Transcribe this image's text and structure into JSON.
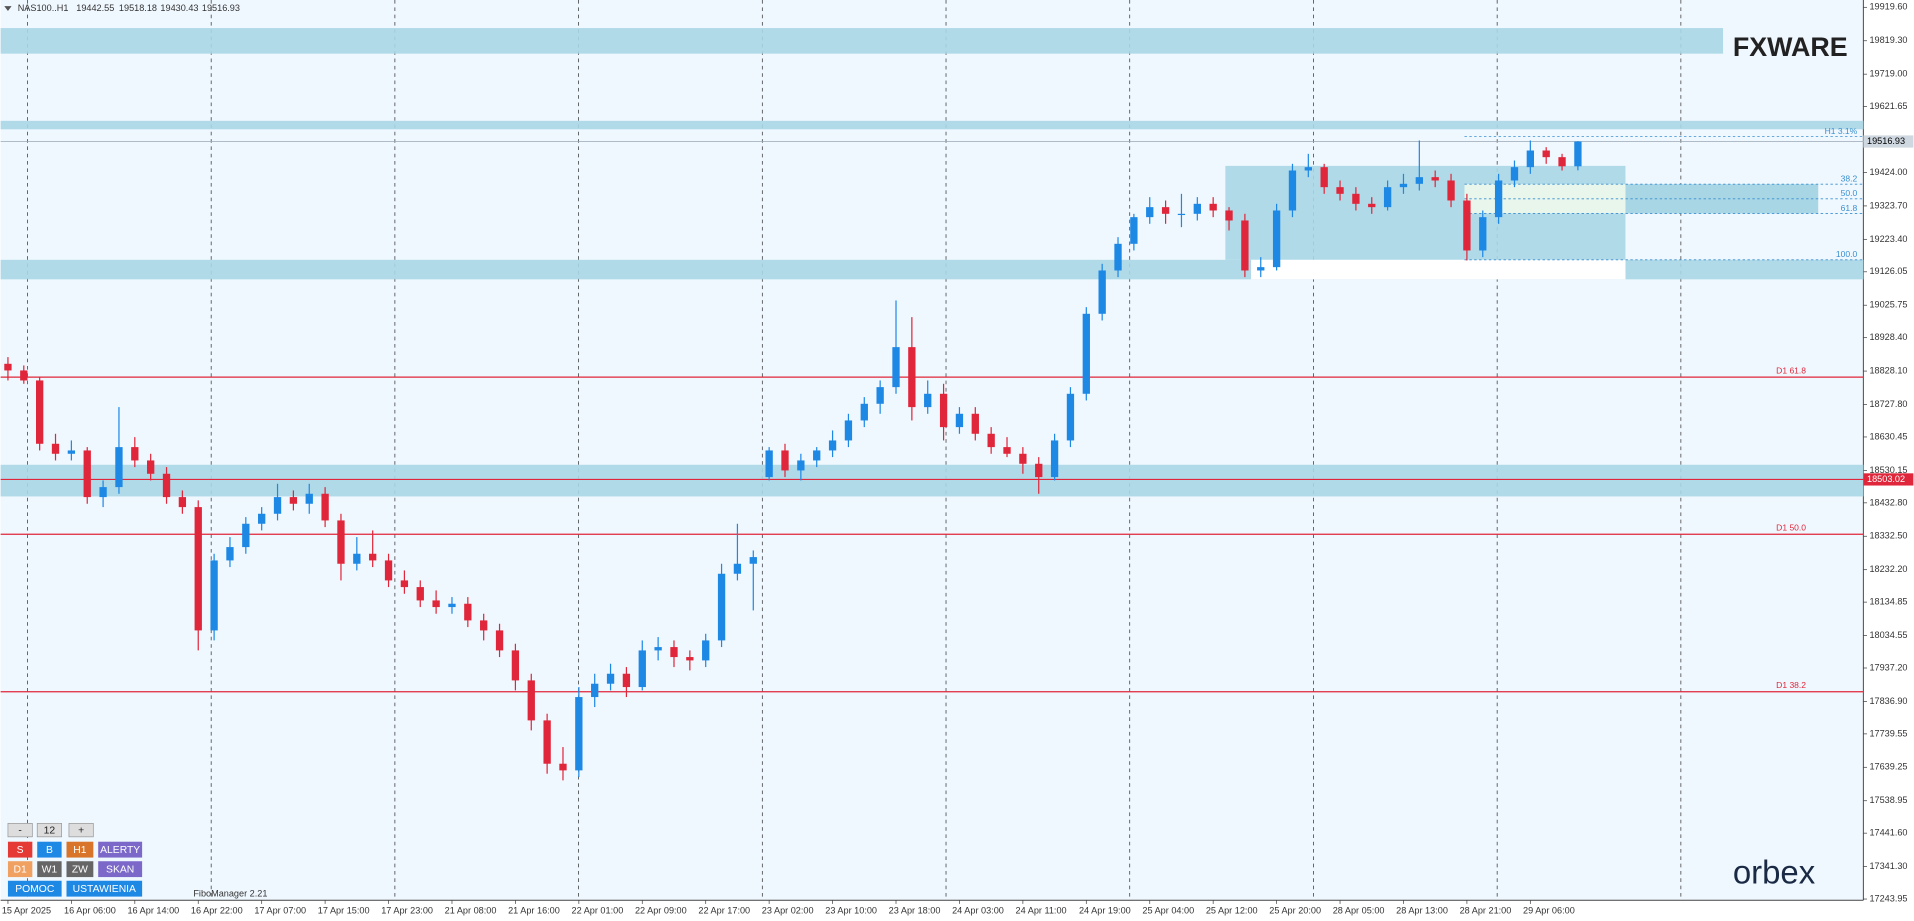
{
  "chart_data": {
    "type": "candlestick",
    "symbol": "NAS100..H1",
    "up_color": "#1e88e5",
    "down_color": "#e0263a",
    "ylim": [
      17243.95,
      19919.6
    ],
    "yticks": [
      {
        "value": 19919.6,
        "label": "19919.60"
      },
      {
        "value": 19819.3,
        "label": "19819.30"
      },
      {
        "value": 19719,
        "label": "19719.00"
      },
      19621.65,
      {
        "value": 19424,
        "label": "19424.00"
      },
      {
        "value": 19323.7,
        "label": "19323.70"
      },
      {
        "value": 19223.4,
        "label": "19223.40"
      },
      19126.05,
      19025.75,
      {
        "value": 18928.4,
        "label": "18928.40"
      },
      {
        "value": 18828.1,
        "label": "18828.10"
      },
      {
        "value": 18727.8,
        "label": "18727.80"
      },
      18630.45,
      18530.15,
      {
        "value": 18432.8,
        "label": "18432.80"
      },
      {
        "value": 18332.5,
        "label": "18332.50"
      },
      {
        "value": 18232.2,
        "label": "18232.20"
      },
      18134.85,
      18034.55,
      {
        "value": 17937.2,
        "label": "17937.20"
      },
      {
        "value": 17836.9,
        "label": "17836.90"
      },
      17739.55,
      17639.25,
      17538.95,
      {
        "value": 17441.6,
        "label": "17441.60"
      },
      {
        "value": 17341.3,
        "label": "17341.30"
      },
      17243.95
    ],
    "categories": [
      "15 Apr 2025",
      null,
      null,
      null,
      "16 Apr 06:00",
      null,
      null,
      null,
      "16 Apr 14:00",
      null,
      null,
      null,
      "16 Apr 22:00",
      null,
      null,
      null,
      "17 Apr 07:00",
      null,
      null,
      null,
      "17 Apr 15:00",
      null,
      null,
      null,
      "17 Apr 23:00",
      null,
      null,
      null,
      "21 Apr 08:00",
      null,
      null,
      null,
      "21 Apr 16:00",
      null,
      null,
      null,
      "22 Apr 01:00",
      null,
      null,
      null,
      "22 Apr 09:00",
      null,
      null,
      null,
      "22 Apr 17:00",
      null,
      null,
      null,
      "23 Apr 02:00",
      null,
      null,
      null,
      "23 Apr 10:00",
      null,
      null,
      null,
      "23 Apr 18:00",
      null,
      null,
      null,
      "24 Apr 03:00",
      null,
      null,
      null,
      "24 Apr 11:00",
      null,
      null,
      null,
      "24 Apr 19:00",
      null,
      null,
      null,
      "25 Apr 04:00",
      null,
      null,
      null,
      "25 Apr 12:00",
      null,
      null,
      null,
      "25 Apr 20:00",
      null,
      null,
      null,
      "28 Apr 05:00",
      null,
      null,
      null,
      "28 Apr 13:00",
      null,
      null,
      null,
      "28 Apr 21:00",
      null,
      null,
      null,
      "29 Apr 06:00",
      null,
      null,
      null
    ],
    "candles": [
      [
        18850,
        18870,
        18800,
        18830
      ],
      [
        18830,
        18845,
        18790,
        18800
      ],
      [
        18800,
        18810,
        18590,
        18610
      ],
      [
        18610,
        18640,
        18560,
        18580
      ],
      [
        18580,
        18620,
        18560,
        18590
      ],
      [
        18590,
        18600,
        18430,
        18450
      ],
      [
        18450,
        18500,
        18420,
        18480
      ],
      [
        18480,
        18720,
        18460,
        18600
      ],
      [
        18600,
        18630,
        18540,
        18560
      ],
      [
        18560,
        18580,
        18500,
        18520
      ],
      [
        18520,
        18540,
        18430,
        18450
      ],
      [
        18450,
        18470,
        18400,
        18420
      ],
      [
        18420,
        18440,
        17990,
        18050
      ],
      [
        18050,
        18280,
        18020,
        18260
      ],
      [
        18260,
        18330,
        18240,
        18300
      ],
      [
        18300,
        18390,
        18280,
        18370
      ],
      [
        18370,
        18420,
        18350,
        18400
      ],
      [
        18400,
        18490,
        18380,
        18450
      ],
      [
        18450,
        18470,
        18410,
        18430
      ],
      [
        18430,
        18490,
        18400,
        18460
      ],
      [
        18460,
        18480,
        18360,
        18380
      ],
      [
        18380,
        18400,
        18200,
        18250
      ],
      [
        18250,
        18330,
        18230,
        18280
      ],
      [
        18280,
        18350,
        18240,
        18260
      ],
      [
        18260,
        18280,
        18180,
        18200
      ],
      [
        18200,
        18230,
        18160,
        18180
      ],
      [
        18180,
        18200,
        18120,
        18140
      ],
      [
        18140,
        18170,
        18100,
        18120
      ],
      [
        18120,
        18150,
        18100,
        18130
      ],
      [
        18130,
        18150,
        18060,
        18080
      ],
      [
        18080,
        18100,
        18020,
        18050
      ],
      [
        18050,
        18070,
        17970,
        17990
      ],
      [
        17990,
        18010,
        17870,
        17900
      ],
      [
        17900,
        17920,
        17750,
        17780
      ],
      [
        17780,
        17800,
        17620,
        17650
      ],
      [
        17650,
        17700,
        17600,
        17630
      ],
      [
        17630,
        17880,
        17610,
        17850
      ],
      [
        17850,
        17920,
        17820,
        17890
      ],
      [
        17890,
        17950,
        17870,
        17920
      ],
      [
        17920,
        17940,
        17850,
        17880
      ],
      [
        17880,
        18020,
        17870,
        17990
      ],
      [
        17990,
        18030,
        17960,
        18000
      ],
      [
        18000,
        18020,
        17940,
        17970
      ],
      [
        17970,
        17990,
        17930,
        17960
      ],
      [
        17960,
        18040,
        17940,
        18020
      ],
      [
        18020,
        18250,
        18000,
        18220
      ],
      [
        18220,
        18370,
        18200,
        18250
      ],
      [
        18250,
        18290,
        18110,
        18270
      ],
      [
        18510,
        18600,
        18500,
        18590
      ],
      [
        18590,
        18610,
        18510,
        18530
      ],
      [
        18530,
        18580,
        18500,
        18560
      ],
      [
        18560,
        18600,
        18540,
        18590
      ],
      [
        18590,
        18650,
        18570,
        18620
      ],
      [
        18620,
        18700,
        18600,
        18680
      ],
      [
        18680,
        18750,
        18660,
        18730
      ],
      [
        18730,
        18800,
        18700,
        18780
      ],
      [
        18780,
        19040,
        18760,
        18900
      ],
      [
        18900,
        18990,
        18680,
        18720
      ],
      [
        18720,
        18800,
        18700,
        18760
      ],
      [
        18760,
        18790,
        18620,
        18660
      ],
      [
        18660,
        18720,
        18640,
        18700
      ],
      [
        18700,
        18720,
        18620,
        18640
      ],
      [
        18640,
        18660,
        18580,
        18600
      ],
      [
        18600,
        18630,
        18570,
        18580
      ],
      [
        18580,
        18600,
        18520,
        18550
      ],
      [
        18550,
        18570,
        18460,
        18510
      ],
      [
        18510,
        18640,
        18500,
        18620
      ],
      [
        18620,
        18780,
        18600,
        18760
      ],
      [
        18760,
        19020,
        18740,
        19000
      ],
      [
        19000,
        19150,
        18980,
        19130
      ],
      [
        19130,
        19230,
        19110,
        19210
      ],
      [
        19210,
        19300,
        19190,
        19290
      ],
      [
        19290,
        19350,
        19270,
        19320
      ],
      [
        19320,
        19340,
        19270,
        19300
      ],
      [
        19300,
        19360,
        19260,
        19300
      ],
      [
        19300,
        19350,
        19280,
        19330
      ],
      [
        19330,
        19350,
        19290,
        19310
      ],
      [
        19310,
        19320,
        19250,
        19280
      ],
      [
        19280,
        19300,
        19110,
        19130
      ],
      [
        19130,
        19170,
        19110,
        19140
      ],
      [
        19140,
        19330,
        19130,
        19310
      ],
      [
        19310,
        19450,
        19290,
        19430
      ],
      [
        19430,
        19480,
        19410,
        19440
      ],
      [
        19440,
        19450,
        19360,
        19380
      ],
      [
        19380,
        19400,
        19340,
        19360
      ],
      [
        19360,
        19380,
        19310,
        19330
      ],
      [
        19330,
        19350,
        19300,
        19320
      ],
      [
        19320,
        19400,
        19310,
        19380
      ],
      [
        19380,
        19420,
        19360,
        19390
      ],
      [
        19390,
        19520,
        19370,
        19410
      ],
      [
        19410,
        19430,
        19380,
        19400
      ],
      [
        19400,
        19420,
        19320,
        19340
      ],
      [
        19340,
        19360,
        19160,
        19190
      ],
      [
        19190,
        19310,
        19170,
        19290
      ],
      [
        19290,
        19420,
        19270,
        19400
      ],
      [
        19400,
        19460,
        19380,
        19440
      ],
      [
        19440,
        19520,
        19420,
        19490
      ],
      [
        19490,
        19500,
        19450,
        19470
      ],
      [
        19470,
        19480,
        19430,
        19442.55
      ],
      [
        19442.55,
        19518.18,
        19430.43,
        19516.93
      ]
    ],
    "zones": [
      {
        "low": 19780.5,
        "high": 19857.4
      },
      {
        "low": 19553.6,
        "high": 19579
      },
      {
        "low": 19103.4,
        "high": 19162
      },
      {
        "low": 18452,
        "high": 18547
      }
    ],
    "range_box": {
      "low": 19162,
      "high": 19443.8
    },
    "d1_levels": [
      {
        "label": "D1 61.8",
        "value": 18810
      },
      {
        "label": "D1 50.0",
        "value": 18338.5
      },
      {
        "label": "D1 38.2",
        "value": 17866
      }
    ],
    "fib_levels": [
      {
        "label": "H1 3.1%",
        "value": 19531.6
      },
      {
        "label": "38.2",
        "value": 19389
      },
      {
        "label": "50.0",
        "value": 19345
      },
      {
        "label": "61.8",
        "value": 19301
      },
      {
        "label": "100.0",
        "value": 19162
      }
    ],
    "alert_price": {
      "value": 18503.02,
      "label": "18503.02"
    }
  },
  "panel": {
    "minus": "-",
    "period": "12",
    "plus": "+",
    "sell": "S",
    "buy": "B",
    "h1": "H1",
    "alerts": "ALERTY",
    "d1": "D1",
    "w1": "W1",
    "zw": "ZW",
    "scan": "SKAN",
    "help": "POMOC",
    "settings": "USTAWIENIA"
  },
  "indicator": "FiboManager 2.21",
  "logo_top": "FXWARE",
  "logo_bottom": "orbex"
}
